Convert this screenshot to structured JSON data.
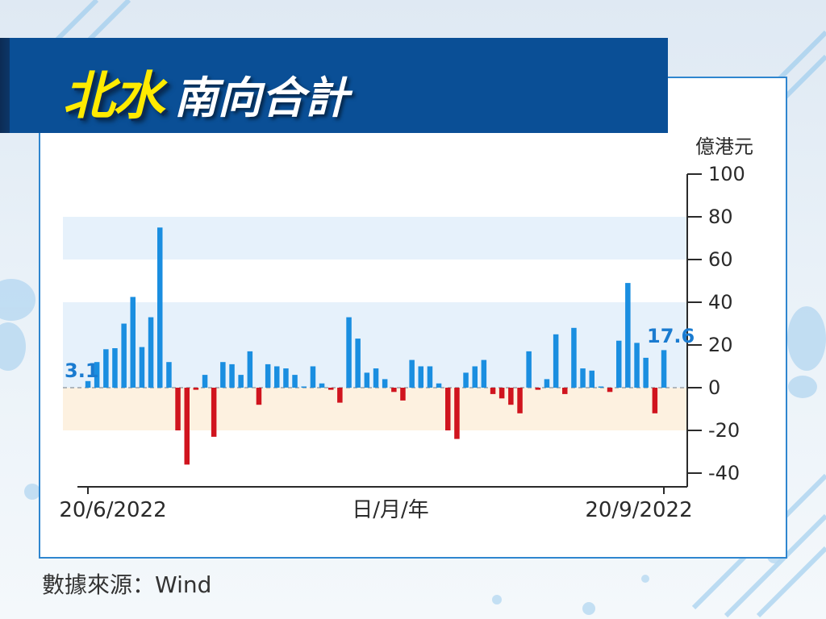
{
  "header": {
    "title_main": "北水",
    "title_sub": "南向合計"
  },
  "source_text": "數據來源：Wind",
  "colors": {
    "positive": "#1a8ee0",
    "negative": "#d0141e",
    "banner": "#0a4f96",
    "title_yellow": "#ffeb00",
    "band_blue": "#e6f1fb",
    "band_orange": "#fdf1e0"
  },
  "chart_data": {
    "type": "bar",
    "ylabel": "億港元",
    "xlabel": "日/月/年",
    "y_ticks": [
      "100",
      "80",
      "60",
      "40",
      "20",
      "0",
      "-20",
      "-40"
    ],
    "ylim": [
      -45,
      100
    ],
    "x_tick_labels": [
      "20/6/2022",
      "20/9/2022"
    ],
    "grid": false,
    "annotations": [
      {
        "label": "3.1",
        "value": 3.1
      },
      {
        "label": "17.6",
        "value": 17.6
      }
    ],
    "values": [
      3.1,
      12,
      18,
      18.5,
      30,
      42.5,
      19,
      33,
      75,
      12,
      -20,
      -36,
      -1,
      6,
      -23,
      12,
      11,
      6,
      17,
      -8,
      11,
      10,
      9,
      6,
      0,
      10,
      2,
      -1,
      -7,
      33,
      23,
      7,
      9,
      4,
      -2,
      -6,
      13,
      10,
      10,
      2,
      -20,
      -24,
      7,
      10,
      13,
      -3,
      -5,
      -8,
      -12,
      17,
      -1,
      4,
      25,
      -3,
      28,
      9,
      8,
      0,
      -2,
      22,
      49,
      21,
      14,
      -12,
      17.6
    ]
  }
}
